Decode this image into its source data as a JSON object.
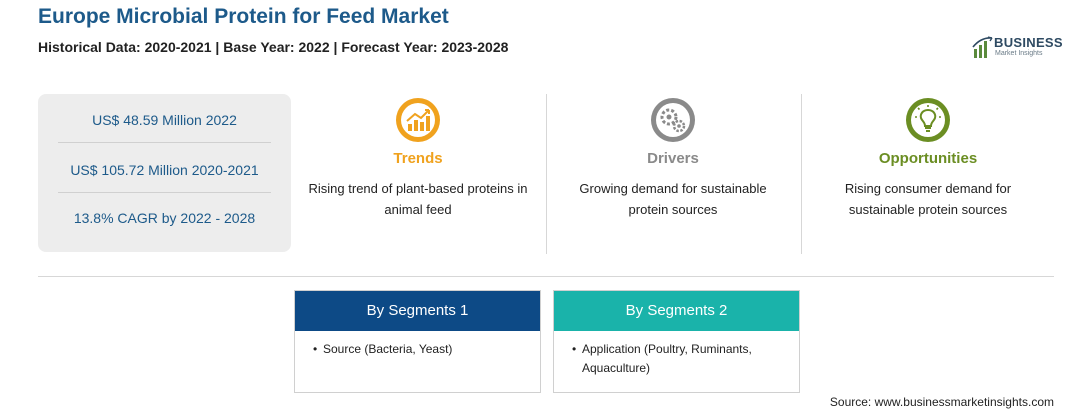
{
  "header": {
    "title": "Europe Microbial Protein for Feed Market",
    "subtitle": "Historical Data: 2020-2021 | Base Year: 2022 | Forecast Year: 2023-2028"
  },
  "logo": {
    "brand": "BUSINESS",
    "tagline": "Market Insights",
    "colors": {
      "bars": "#5a8a3c",
      "text": "#2e4a62"
    }
  },
  "stats": [
    {
      "text": "US$ 48.59 Million 2022"
    },
    {
      "text": "US$ 105.72 Million 2020-2021"
    },
    {
      "text": "13.8% CAGR by 2022 - 2028"
    }
  ],
  "columns": [
    {
      "icon": "rising-chart-icon",
      "heading": "Trends",
      "text": "Rising trend of plant-based proteins in animal feed",
      "color": "#f0a21e"
    },
    {
      "icon": "gears-icon",
      "heading": "Drivers",
      "text": "Growing demand for sustainable protein sources",
      "color": "#8a8a8a"
    },
    {
      "icon": "lightbulb-icon",
      "heading": "Opportunities",
      "text": "Rising consumer demand for sustainable protein sources",
      "color": "#6b8e23"
    }
  ],
  "segments": [
    {
      "title": "By Segments 1",
      "item": "Source (Bacteria, Yeast)",
      "color": "#0d4a86"
    },
    {
      "title": "By Segments 2",
      "item": "Application (Poultry, Ruminants, Aquaculture)",
      "color": "#1ab3aa"
    }
  ],
  "footer": {
    "source": "Source: www.businessmarketinsights.com"
  }
}
